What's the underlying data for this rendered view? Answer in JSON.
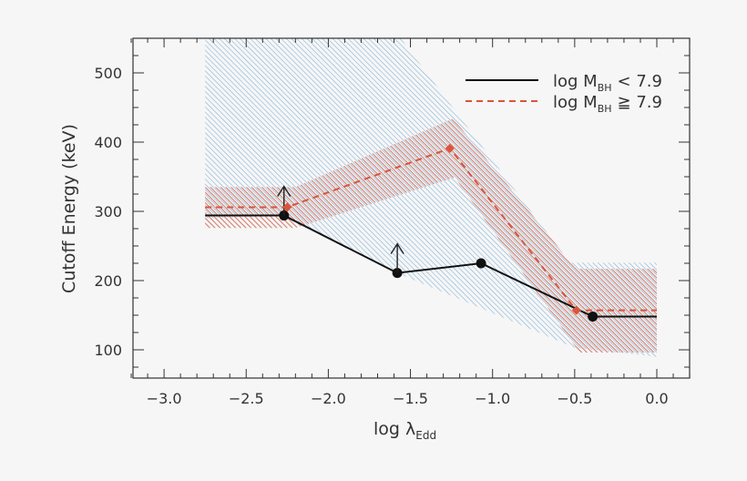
{
  "chart_data": {
    "type": "line",
    "title": "",
    "xlabel": "log λ",
    "xlabel_sub": "Edd",
    "ylabel": "Cutoff Energy (keV)",
    "xlim": [
      -3.2,
      0.2
    ],
    "ylim": [
      59,
      550
    ],
    "xticks": [
      -3.0,
      -2.5,
      -2.0,
      -1.5,
      -1.0,
      -0.5,
      0.0
    ],
    "xtick_labels": [
      "−3.0",
      "−2.5",
      "−2.0",
      "−1.5",
      "−1.0",
      "−0.5",
      "0.0"
    ],
    "yticks": [
      100,
      200,
      300,
      400,
      500
    ],
    "ytick_labels": [
      "100",
      "200",
      "300",
      "400",
      "500"
    ],
    "grid": false,
    "legend_position": "top-right",
    "series": [
      {
        "name": "log M",
        "name_sub": "BH",
        "name_rel": "< 7.9",
        "color": "#111111",
        "style": "solid",
        "marker": "circle",
        "x": [
          -2.27,
          -1.58,
          -1.07,
          -0.39
        ],
        "y": [
          294,
          211,
          225,
          148
        ],
        "lower_limit": [
          true,
          true,
          false,
          false
        ],
        "extend_left_to": -2.75,
        "extend_right_to": 0.0,
        "band_color": "#7aaed6",
        "band": {
          "upper": [
            [
              -2.75,
              550
            ],
            [
              -1.56,
              550
            ],
            [
              -0.53,
              226
            ],
            [
              0.0,
              226
            ]
          ],
          "lower": [
            [
              -2.75,
              290
            ],
            [
              -2.27,
              294
            ],
            [
              -1.58,
              211
            ],
            [
              -0.5,
              103
            ],
            [
              0.0,
              90
            ]
          ]
        }
      },
      {
        "name": "log M",
        "name_sub": "BH",
        "name_rel": "≧ 7.9",
        "color": "#d9553b",
        "style": "dashed",
        "marker": "diamond",
        "x": [
          -2.25,
          -1.26,
          -0.49
        ],
        "y": [
          306,
          391,
          157
        ],
        "lower_limit": [
          false,
          false,
          false
        ],
        "extend_left_to": -2.75,
        "extend_right_to": 0.0,
        "band_color": "#d9553b",
        "band": {
          "upper": [
            [
              -2.75,
              335
            ],
            [
              -2.2,
              335
            ],
            [
              -1.24,
              434
            ],
            [
              -0.49,
              217
            ],
            [
              0.0,
              217
            ]
          ],
          "lower": [
            [
              -2.75,
              276
            ],
            [
              -2.2,
              276
            ],
            [
              -1.23,
              349
            ],
            [
              -0.47,
              96
            ],
            [
              0.0,
              96
            ]
          ]
        }
      }
    ]
  }
}
